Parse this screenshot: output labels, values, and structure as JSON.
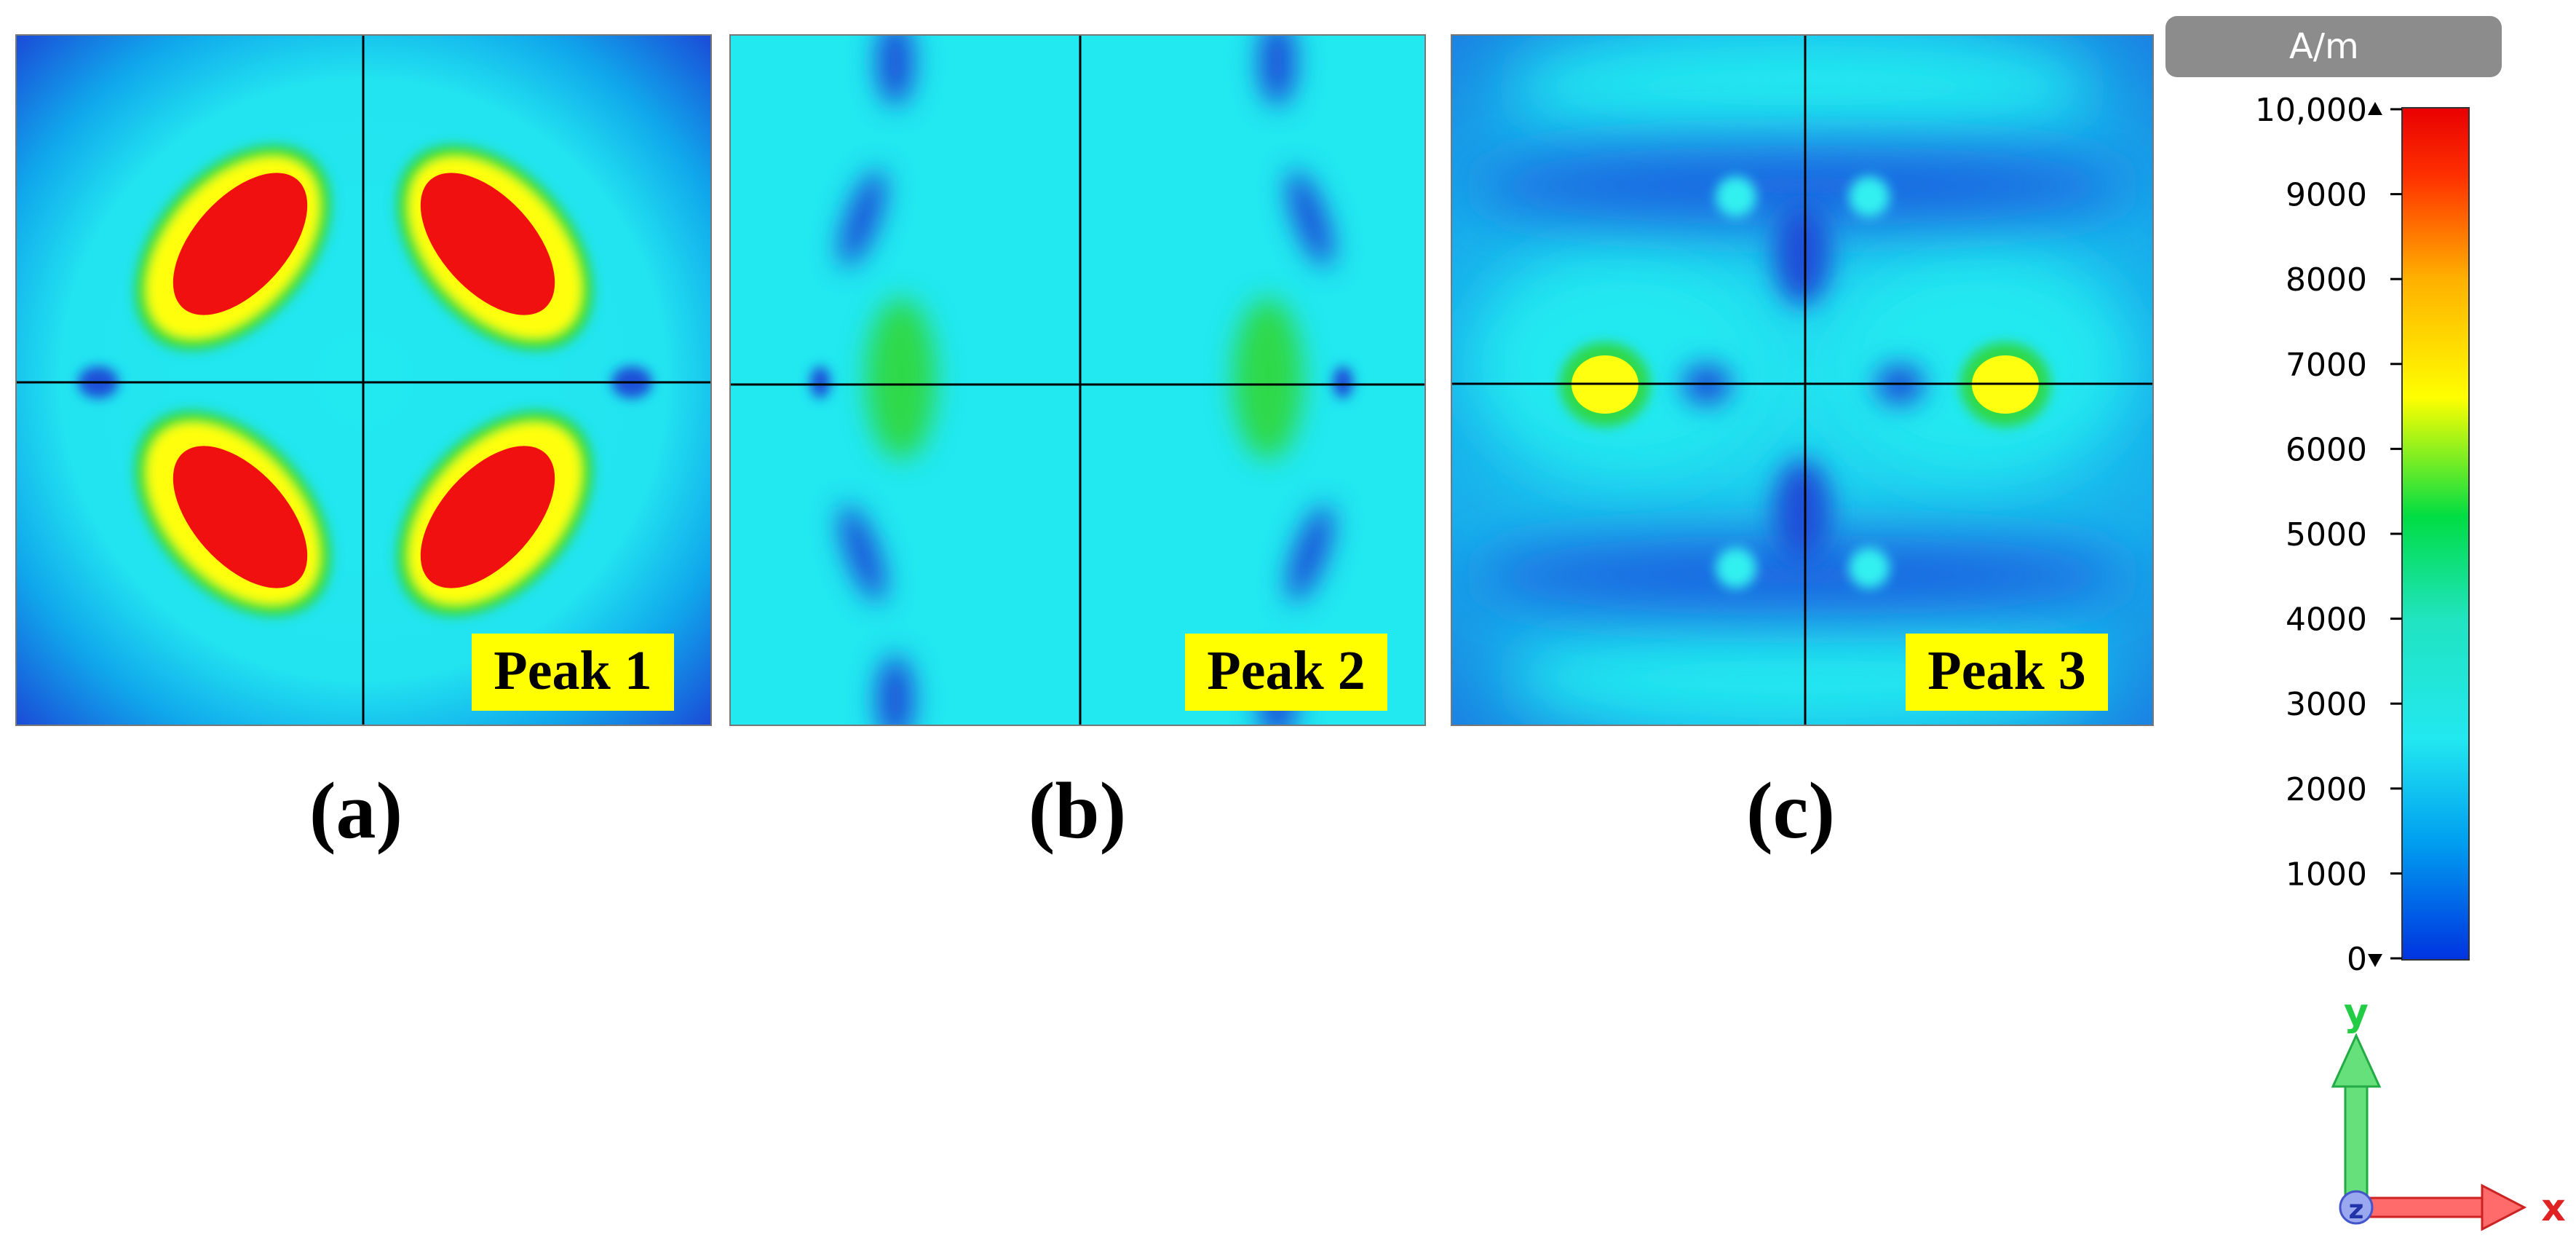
{
  "panels": [
    {
      "id": "a",
      "peak_label": "Peak 1",
      "caption": "(a)"
    },
    {
      "id": "b",
      "peak_label": "Peak 2",
      "caption": "(b)"
    },
    {
      "id": "c",
      "peak_label": "Peak 3",
      "caption": "(c)"
    }
  ],
  "colorbar": {
    "unit": "A/m",
    "ticks": [
      "10,000",
      "9000",
      "8000",
      "7000",
      "6000",
      "5000",
      "4000",
      "3000",
      "2000",
      "1000",
      "0"
    ],
    "min": 0,
    "max": 10000,
    "colors": [
      "#0033e0",
      "#00c8f0",
      "#22e8f0",
      "#00dd44",
      "#ffff00",
      "#ffb000",
      "#ff3000",
      "#e80000"
    ]
  },
  "axes_triad": {
    "y": "y",
    "x": "x",
    "z": "z"
  },
  "colors": {
    "field_low": "#1a4fd8",
    "field_base": "#22e8f0",
    "field_mid": "#2ed94a",
    "field_high": "#ffff10",
    "field_peak": "#f01010",
    "label_bg": "#ffff00",
    "axis_y": "#33dd55",
    "axis_x": "#ff4444"
  }
}
